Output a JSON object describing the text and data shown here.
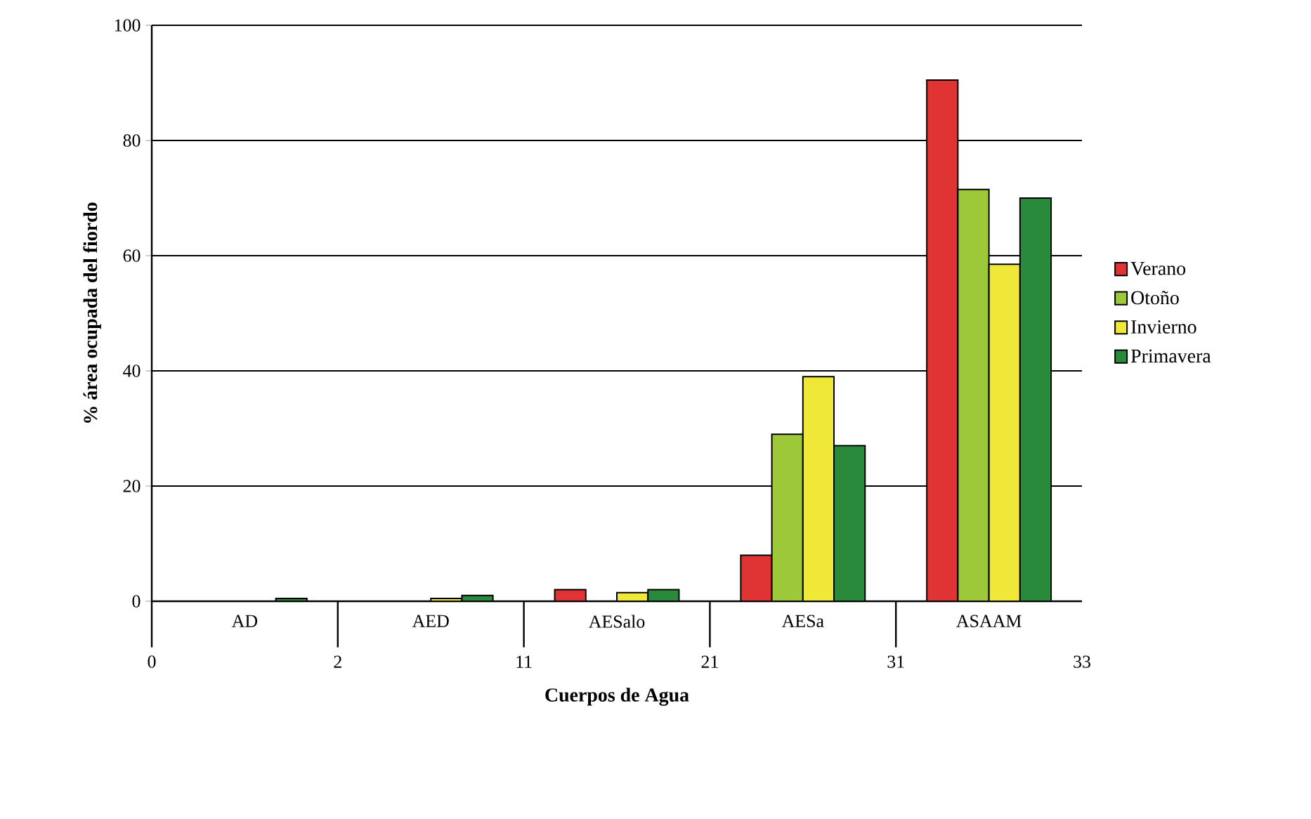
{
  "chart_data": {
    "type": "bar",
    "xlabel": "Cuerpos  de Agua",
    "ylabel": "% área ocupada del fiordo",
    "categories": [
      "AD",
      "AED",
      "AESalo",
      "AESa",
      "ASAAM"
    ],
    "series": [
      {
        "name": "Verano",
        "color": "#e03434",
        "values": [
          null,
          null,
          2,
          8,
          90.5
        ]
      },
      {
        "name": "Otoño",
        "color": "#9cc83a",
        "values": [
          null,
          null,
          null,
          29,
          71.5
        ]
      },
      {
        "name": "Invierno",
        "color": "#f0e838",
        "values": [
          null,
          0.5,
          1.5,
          39,
          58.5
        ]
      },
      {
        "name": "Primavera",
        "color": "#2a8a3c",
        "values": [
          0.5,
          1,
          2,
          27,
          70
        ]
      }
    ],
    "ylim": [
      0,
      100
    ],
    "yticks": [
      0,
      20,
      40,
      60,
      80,
      100
    ],
    "grid": "y",
    "legend": "right",
    "annotations": [
      "0",
      "2",
      "11",
      "21",
      "31",
      "33"
    ]
  }
}
